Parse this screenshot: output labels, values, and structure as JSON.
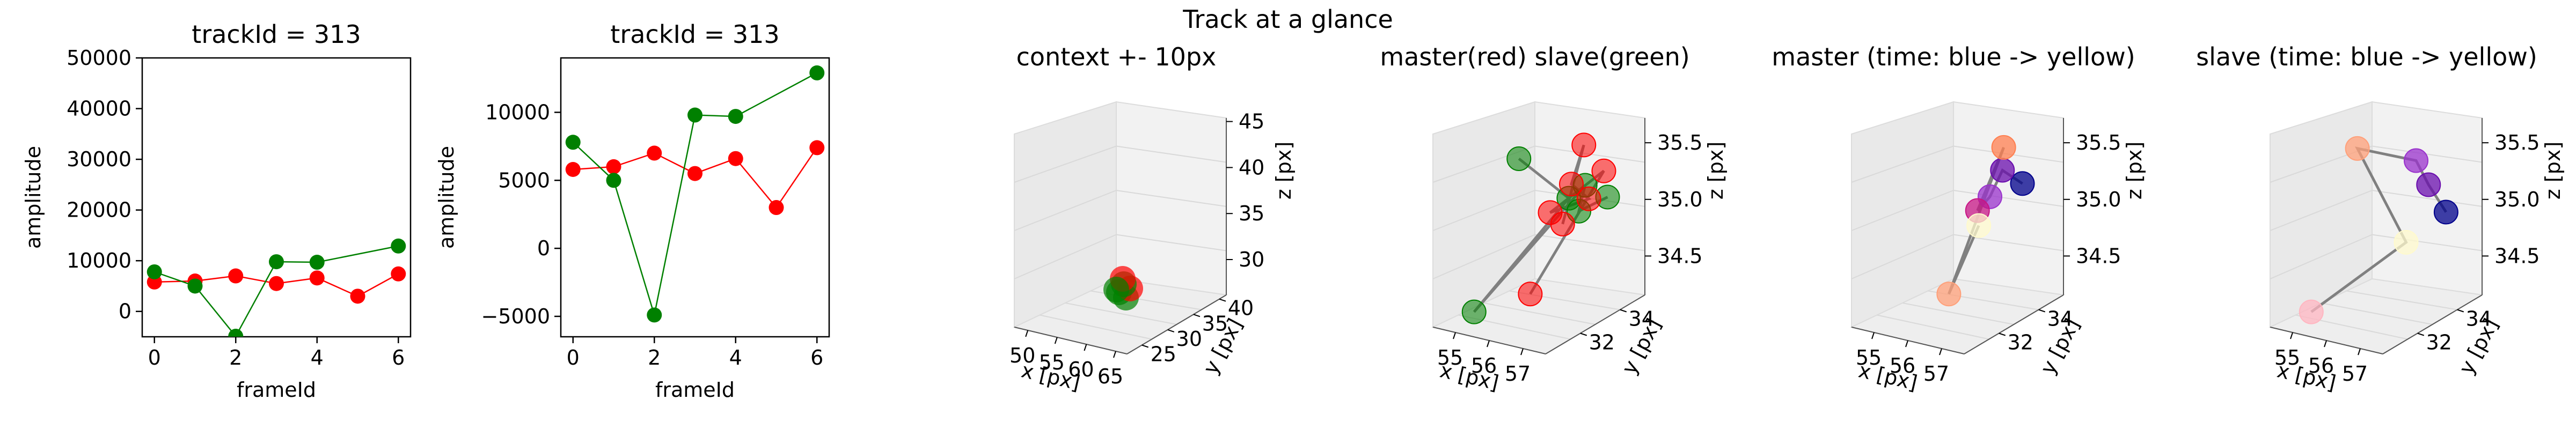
{
  "suptitle": "Track at a glance",
  "colors": {
    "master": "#ff0000",
    "slave": "#008000",
    "line": "#808080",
    "pane": "#f2f2f2",
    "grid": "#d9d9d9"
  },
  "chart_data": [
    {
      "type": "line",
      "title": "trackId = 313",
      "xlabel": "frameId",
      "ylabel": "amplitude",
      "xlim": [
        -0.3,
        6.3
      ],
      "ylim": [
        -5000,
        50000
      ],
      "xticks": [
        "0",
        "2",
        "4",
        "6"
      ],
      "yticks": [
        "0",
        "10000",
        "20000",
        "30000",
        "40000",
        "50000"
      ],
      "series": [
        {
          "color": "#ff0000",
          "x": [
            0,
            1,
            2,
            3,
            4,
            5,
            6
          ],
          "y": [
            5800,
            6000,
            7000,
            5500,
            6600,
            3000,
            7400
          ]
        },
        {
          "color": "#008000",
          "x": [
            0,
            1,
            2,
            3,
            4,
            6
          ],
          "y": [
            7800,
            5000,
            -4900,
            9800,
            9700,
            12900
          ]
        }
      ]
    },
    {
      "type": "line",
      "title": "trackId = 313",
      "xlabel": "frameId",
      "ylabel": "amplitude",
      "xlim": [
        -0.3,
        6.3
      ],
      "ylim": [
        -6500,
        14000
      ],
      "xticks": [
        "0",
        "2",
        "4",
        "6"
      ],
      "yticks": [
        "−5000",
        "0",
        "5000",
        "10000"
      ],
      "series": [
        {
          "color": "#ff0000",
          "x": [
            0,
            1,
            2,
            3,
            4,
            5,
            6
          ],
          "y": [
            5800,
            6000,
            7000,
            5500,
            6600,
            3000,
            7400
          ]
        },
        {
          "color": "#008000",
          "x": [
            0,
            1,
            2,
            3,
            4,
            6
          ],
          "y": [
            7800,
            5000,
            -4900,
            9800,
            9700,
            12900
          ]
        }
      ]
    },
    {
      "type": "scatter",
      "title": "context +- 10px",
      "xlabel": "x [px]",
      "ylabel": "y [px]",
      "zlabel": "z [px]",
      "xticks": [
        "50",
        "55",
        "60",
        "65"
      ],
      "yticks": [
        "25",
        "30",
        "35",
        "40"
      ],
      "zticks": [
        "30",
        "35",
        "40",
        "45"
      ],
      "points": [
        {
          "color": "#008000",
          "x": 56,
          "y": 33,
          "z": 35
        },
        {
          "color": "#008000",
          "x": 57,
          "y": 32,
          "z": 34.5
        },
        {
          "color": "#ff0000",
          "x": 57,
          "y": 34,
          "z": 35.5
        },
        {
          "color": "#008000",
          "x": 56,
          "y": 34,
          "z": 35.2
        },
        {
          "color": "#ff0000",
          "x": 56,
          "y": 33,
          "z": 35
        },
        {
          "color": "#008000",
          "x": 57,
          "y": 33,
          "z": 35
        }
      ]
    },
    {
      "type": "scatter",
      "title": "master(red) slave(green)",
      "xlabel": "x [px]",
      "ylabel": "y [px]",
      "zlabel": "z [px]",
      "xticks": [
        "55",
        "56",
        "57"
      ],
      "yticks": [
        "32",
        "34"
      ],
      "zticks": [
        "34.5",
        "35.0",
        "35.5"
      ]
    },
    {
      "type": "scatter",
      "title": "master (time: blue -> yellow)",
      "xlabel": "x [px]",
      "ylabel": "y [px]",
      "zlabel": "z [px]",
      "xticks": [
        "55",
        "56",
        "57"
      ],
      "yticks": [
        "32",
        "34"
      ],
      "zticks": [
        "34.5",
        "35.0",
        "35.5"
      ]
    },
    {
      "type": "scatter",
      "title": "slave (time: blue -> yellow)",
      "xlabel": "x [px]",
      "ylabel": "y [px]",
      "zlabel": "z [px]",
      "xticks": [
        "55",
        "56",
        "57"
      ],
      "yticks": [
        "32",
        "34"
      ],
      "zticks": [
        "34.5",
        "35.0",
        "35.5"
      ]
    }
  ]
}
